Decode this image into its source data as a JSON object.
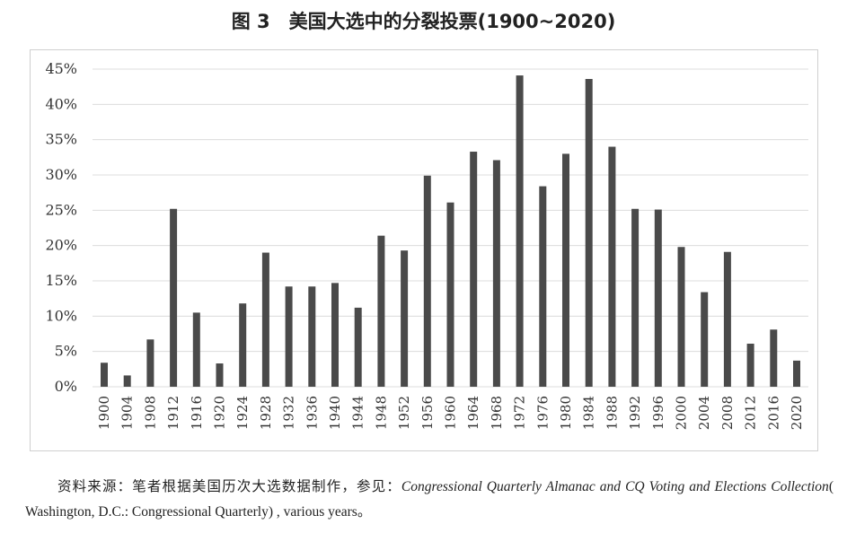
{
  "chart_data": {
    "type": "bar",
    "title": "图 3　美国大选中的分裂投票(1900~2020)",
    "xlabel": "",
    "ylabel": "",
    "ylim": [
      0,
      45
    ],
    "yticks": [
      "0%",
      "5%",
      "10%",
      "15%",
      "20%",
      "25%",
      "30%",
      "35%",
      "40%",
      "45%"
    ],
    "grid": true,
    "bar_color": "#4a4a4a",
    "categories": [
      "1900",
      "1904",
      "1908",
      "1912",
      "1916",
      "1920",
      "1924",
      "1928",
      "1932",
      "1936",
      "1940",
      "1944",
      "1948",
      "1952",
      "1956",
      "1960",
      "1964",
      "1968",
      "1972",
      "1976",
      "1980",
      "1984",
      "1988",
      "1992",
      "1996",
      "2000",
      "2004",
      "2008",
      "2012",
      "2016",
      "2020"
    ],
    "values": [
      3.4,
      1.6,
      6.7,
      25.2,
      10.5,
      3.3,
      11.8,
      19.0,
      14.2,
      14.2,
      14.7,
      11.2,
      21.4,
      19.3,
      29.9,
      26.1,
      33.3,
      32.1,
      44.1,
      28.4,
      33.0,
      43.6,
      34.0,
      25.2,
      25.1,
      19.8,
      13.4,
      19.1,
      6.1,
      8.1,
      3.7
    ]
  },
  "source": {
    "prefix": "资料来源：笔者根据美国历次大选数据制作，参见：",
    "italic_title": "Congressional Quarterly Almanac and CQ Voting and Elections Collection",
    "suffix": "( Washington, D.C.: Congressional Quarterly) , various years。"
  }
}
